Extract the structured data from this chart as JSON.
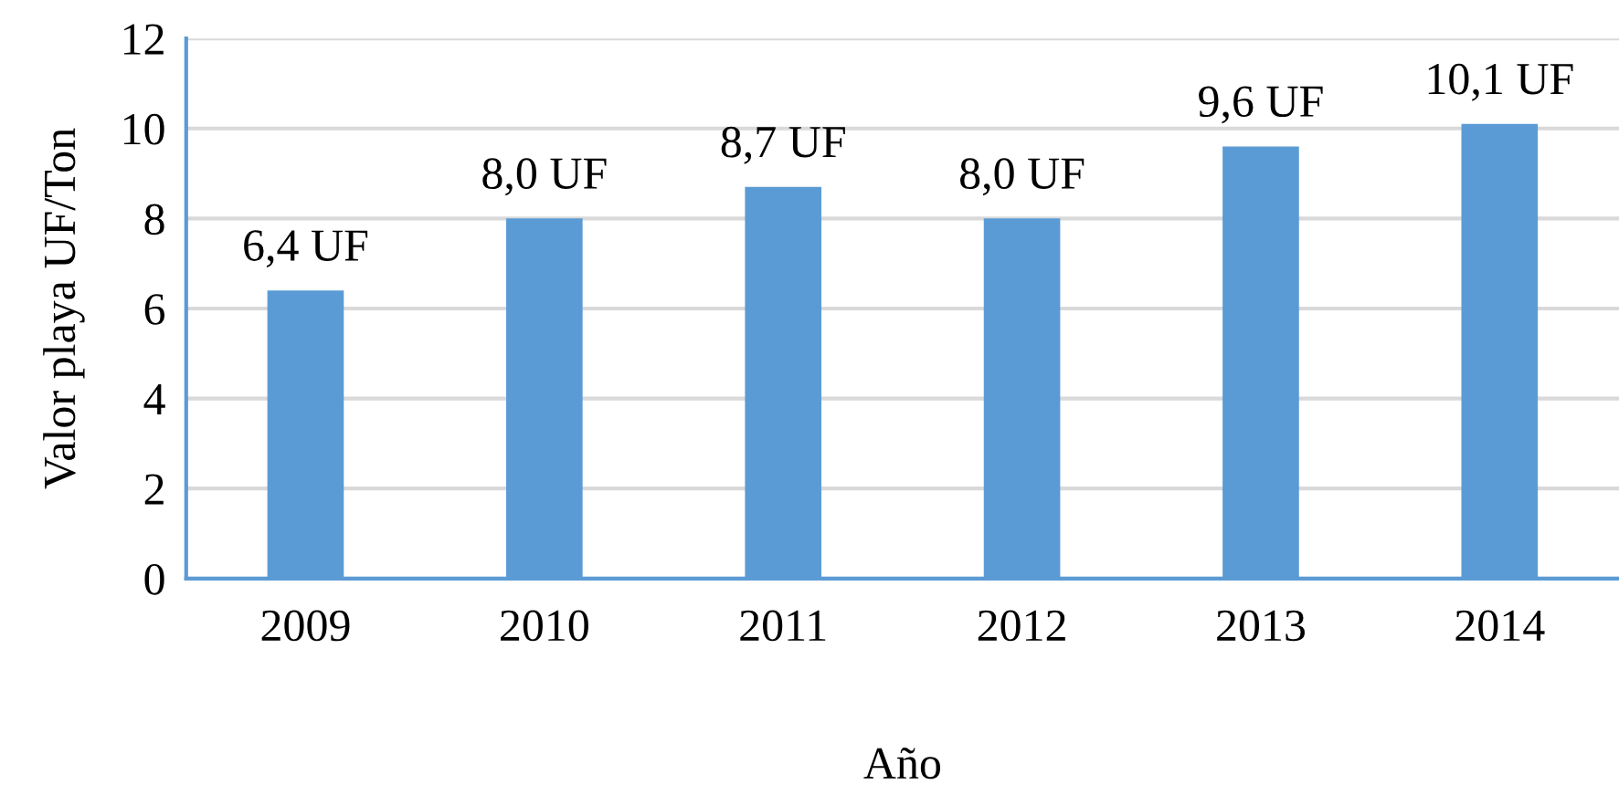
{
  "chart_data": {
    "type": "bar",
    "xlabel": "Año",
    "ylabel": "Valor playa UF/Ton",
    "categories": [
      "2009",
      "2010",
      "2011",
      "2012",
      "2013",
      "2014"
    ],
    "values": [
      6.4,
      8.0,
      8.7,
      8.0,
      9.6,
      10.1
    ],
    "value_labels": [
      "6,4 UF",
      "8,0 UF",
      "8,7 UF",
      "8,0 UF",
      "9,6 UF",
      "10,1 UF"
    ],
    "color": "#5b9bd5",
    "ylim": [
      0,
      12
    ],
    "yticks": [
      0,
      2,
      4,
      6,
      8,
      10,
      12
    ],
    "grid": "y",
    "legend": false
  }
}
